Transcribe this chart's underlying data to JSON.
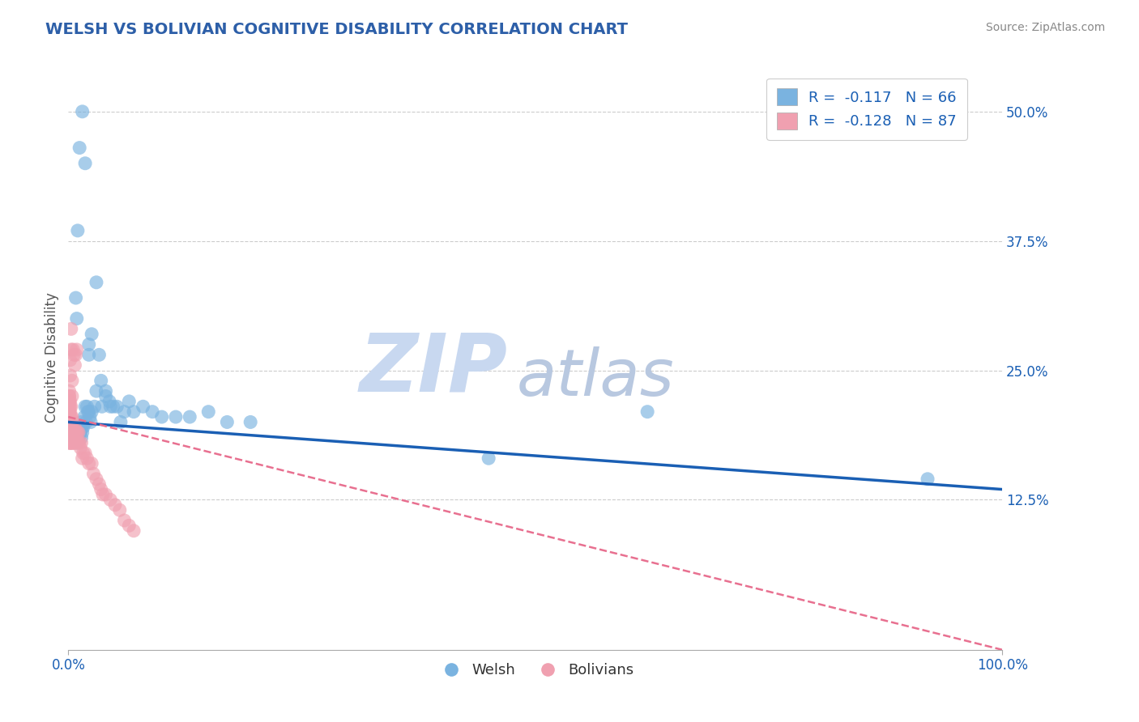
{
  "title": "WELSH VS BOLIVIAN COGNITIVE DISABILITY CORRELATION CHART",
  "source": "Source: ZipAtlas.com",
  "ylabel": "Cognitive Disability",
  "title_color": "#2d5fa8",
  "title_fontsize": 14,
  "welsh_color": "#7ab3e0",
  "bolivian_color": "#f0a0b0",
  "welsh_R": -0.117,
  "welsh_N": 66,
  "bolivian_R": -0.128,
  "bolivian_N": 87,
  "watermark_zip": "ZIP",
  "watermark_atlas": "atlas",
  "watermark_color_zip": "#c8d8f0",
  "watermark_color_atlas": "#b8c8e0",
  "legend_color": "#1a5fb4",
  "blue_line_color": "#1a5fb4",
  "pink_line_color": "#e87090",
  "ytick_vals": [
    0.125,
    0.25,
    0.375,
    0.5
  ],
  "ytick_labels": [
    "12.5%",
    "25.0%",
    "37.5%",
    "50.0%"
  ],
  "xtick_vals": [
    0.0,
    1.0
  ],
  "xtick_labels": [
    "0.0%",
    "100.0%"
  ],
  "xlim": [
    0.0,
    1.0
  ],
  "ylim": [
    -0.02,
    0.545
  ],
  "welsh_x": [
    0.005,
    0.006,
    0.007,
    0.007,
    0.008,
    0.008,
    0.009,
    0.009,
    0.01,
    0.01,
    0.011,
    0.011,
    0.012,
    0.012,
    0.013,
    0.013,
    0.014,
    0.014,
    0.015,
    0.015,
    0.016,
    0.017,
    0.018,
    0.019,
    0.02,
    0.021,
    0.022,
    0.023,
    0.024,
    0.025,
    0.028,
    0.03,
    0.033,
    0.036,
    0.04,
    0.044,
    0.048,
    0.052,
    0.056,
    0.06,
    0.065,
    0.07,
    0.08,
    0.09,
    0.1,
    0.115,
    0.13,
    0.15,
    0.17,
    0.195,
    0.022,
    0.025,
    0.03,
    0.035,
    0.04,
    0.045,
    0.008,
    0.009,
    0.01,
    0.012,
    0.62,
    0.015,
    0.018,
    0.022,
    0.45,
    0.92
  ],
  "welsh_y": [
    0.195,
    0.185,
    0.19,
    0.185,
    0.185,
    0.195,
    0.18,
    0.185,
    0.185,
    0.19,
    0.185,
    0.195,
    0.195,
    0.19,
    0.195,
    0.19,
    0.185,
    0.2,
    0.195,
    0.19,
    0.195,
    0.205,
    0.215,
    0.2,
    0.215,
    0.21,
    0.21,
    0.205,
    0.2,
    0.21,
    0.215,
    0.23,
    0.265,
    0.215,
    0.23,
    0.22,
    0.215,
    0.215,
    0.2,
    0.21,
    0.22,
    0.21,
    0.215,
    0.21,
    0.205,
    0.205,
    0.205,
    0.21,
    0.2,
    0.2,
    0.275,
    0.285,
    0.335,
    0.24,
    0.225,
    0.215,
    0.32,
    0.3,
    0.385,
    0.465,
    0.21,
    0.5,
    0.45,
    0.265,
    0.165,
    0.145
  ],
  "bolivian_x": [
    0.001,
    0.001,
    0.001,
    0.001,
    0.001,
    0.001,
    0.001,
    0.001,
    0.001,
    0.001,
    0.001,
    0.001,
    0.001,
    0.001,
    0.001,
    0.001,
    0.001,
    0.001,
    0.001,
    0.001,
    0.002,
    0.002,
    0.002,
    0.002,
    0.002,
    0.002,
    0.002,
    0.002,
    0.002,
    0.002,
    0.003,
    0.003,
    0.003,
    0.003,
    0.003,
    0.003,
    0.004,
    0.004,
    0.004,
    0.004,
    0.005,
    0.005,
    0.005,
    0.006,
    0.006,
    0.007,
    0.007,
    0.008,
    0.008,
    0.009,
    0.01,
    0.01,
    0.011,
    0.011,
    0.012,
    0.013,
    0.014,
    0.015,
    0.016,
    0.018,
    0.02,
    0.022,
    0.025,
    0.027,
    0.03,
    0.033,
    0.035,
    0.037,
    0.04,
    0.045,
    0.05,
    0.055,
    0.06,
    0.065,
    0.07,
    0.002,
    0.002,
    0.003,
    0.003,
    0.004,
    0.004,
    0.005,
    0.006,
    0.007,
    0.008,
    0.009
  ],
  "bolivian_y": [
    0.195,
    0.2,
    0.19,
    0.195,
    0.205,
    0.18,
    0.185,
    0.19,
    0.2,
    0.205,
    0.21,
    0.2,
    0.18,
    0.225,
    0.22,
    0.23,
    0.22,
    0.21,
    0.215,
    0.225,
    0.205,
    0.2,
    0.21,
    0.215,
    0.22,
    0.2,
    0.185,
    0.18,
    0.19,
    0.18,
    0.2,
    0.195,
    0.205,
    0.215,
    0.19,
    0.18,
    0.205,
    0.195,
    0.18,
    0.18,
    0.2,
    0.19,
    0.18,
    0.19,
    0.18,
    0.195,
    0.18,
    0.19,
    0.18,
    0.19,
    0.19,
    0.18,
    0.19,
    0.18,
    0.18,
    0.175,
    0.18,
    0.165,
    0.17,
    0.17,
    0.165,
    0.16,
    0.16,
    0.15,
    0.145,
    0.14,
    0.135,
    0.13,
    0.13,
    0.125,
    0.12,
    0.115,
    0.105,
    0.1,
    0.095,
    0.26,
    0.245,
    0.29,
    0.27,
    0.225,
    0.24,
    0.27,
    0.265,
    0.255,
    0.265,
    0.27
  ],
  "blue_line_x": [
    0.0,
    1.0
  ],
  "blue_line_y": [
    0.2,
    0.135
  ],
  "pink_line_x": [
    0.0,
    1.0
  ],
  "pink_line_y": [
    0.205,
    -0.02
  ]
}
